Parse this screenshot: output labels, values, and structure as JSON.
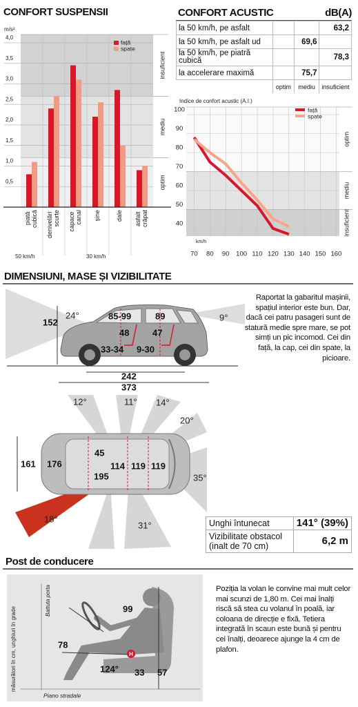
{
  "chart_data": [
    {
      "type": "bar",
      "title": "CONFORT SUSPENSII",
      "y_label": "m/s²",
      "categories": [
        "piată cubică",
        "denivelări scurte",
        "capace canal",
        "șine",
        "dale",
        "asfalt crăpat"
      ],
      "series": [
        {
          "name": "față",
          "color": "#d7182a",
          "values": [
            0.8,
            2.4,
            3.45,
            2.2,
            2.85,
            0.9
          ]
        },
        {
          "name": "spate",
          "color": "#f59a82",
          "values": [
            1.1,
            2.7,
            3.1,
            2.55,
            1.5,
            1.0
          ]
        }
      ],
      "ylim": [
        0,
        4.2
      ],
      "yticks": [
        {
          "value": 0.5,
          "label": "0,5"
        },
        {
          "value": 1,
          "label": "1,0"
        },
        {
          "value": 1.5,
          "label": "1,5"
        },
        {
          "value": 2,
          "label": "2,0"
        },
        {
          "value": 2.5,
          "label": "2,5"
        },
        {
          "value": 3,
          "label": "3,0"
        },
        {
          "value": 3.5,
          "label": "3,5"
        },
        {
          "value": 4,
          "label": "4,0"
        }
      ],
      "zones": [
        {
          "label": "optim",
          "from": 0,
          "to": 1.2,
          "color": "#efefef"
        },
        {
          "label": "mediu",
          "from": 1.2,
          "to": 2.7,
          "color": "#e3e3e3"
        },
        {
          "label": "insuficient",
          "from": 2.7,
          "to": 4.2,
          "color": "#d2d2d2"
        }
      ],
      "groups": [
        "50 km/h",
        "30 km/h"
      ]
    },
    {
      "type": "line",
      "title": "Indice de confort acustic (A.I.)",
      "x_label": "km/h",
      "x": [
        70,
        80,
        90,
        100,
        110,
        120,
        130
      ],
      "series": [
        {
          "name": "față",
          "color": "#d7182a",
          "values": [
            88,
            75,
            68,
            60,
            52,
            40,
            37
          ]
        },
        {
          "name": "spate",
          "color": "#f5a588",
          "values": [
            87,
            80,
            74,
            64,
            55,
            45,
            41
          ]
        }
      ],
      "xlim": [
        65,
        162
      ],
      "xticks": [
        70,
        80,
        90,
        100,
        110,
        120,
        130,
        140,
        150,
        160
      ],
      "ylim": [
        36,
        104
      ],
      "yticks": [
        40,
        50,
        60,
        70,
        80,
        90,
        100
      ],
      "zones": [
        {
          "label": "optim",
          "from": 70,
          "to": 104,
          "color": "#fafafa"
        },
        {
          "label": "mediu",
          "from": 50,
          "to": 70,
          "color": "#e4e4e4"
        },
        {
          "label": "insuficient",
          "from": 36,
          "to": 50,
          "color": "#d0d0d0"
        }
      ]
    }
  ],
  "acoustic_table": {
    "title": "CONFORT ACUSTIC",
    "unit": "dB(A)",
    "rows": [
      {
        "label": "la 50 km/h, pe asfalt",
        "value": "63,2"
      },
      {
        "label": "la 50 km/h, pe asfalt ud",
        "value": "69,6"
      },
      {
        "label": "la 50 km/h, pe piatră cubică",
        "value": "78,3"
      },
      {
        "label": "la accelerare maximă",
        "value": "75,7"
      }
    ],
    "columns": [
      "optim",
      "mediu",
      "insuficient"
    ]
  },
  "dimensions": {
    "title": "DIMENSIUNI, MASE ȘI VIZIBILITATE",
    "side_view": [
      "152",
      "24°",
      "85-99",
      "89",
      "9°",
      "48",
      "47",
      "33-34",
      "9-30",
      "242",
      "373"
    ],
    "text": "Raportat la gabaritul mașinii, spațiul interior este bun. Dar, dacă cei patru pasageri sunt de statură medie spre mare, se pot simți un pic incomod. Cei din față, la cap, cei din spate, la picioare.",
    "top_view": [
      "12°",
      "11°",
      "14°",
      "20°",
      "161",
      "176",
      "45",
      "114",
      "119",
      "119",
      "195",
      "35°",
      "18°",
      "31°"
    ],
    "visibility": [
      {
        "label": "Unghi întunecat",
        "value": "141° (39%)"
      },
      {
        "label": "Vizibilitate obstacol (inalt de 70 cm)",
        "value": "6,2 m"
      }
    ]
  },
  "driving": {
    "title": "Post de conducere",
    "axis_note": "măsurători în cm, unghiuri în grade",
    "labels": [
      "Battuta porta",
      "99",
      "78",
      "124°",
      "33",
      "57",
      "H",
      "Piano stradale"
    ],
    "text": "Poziția la volan le convine mai mult celor mai scunzi de 1,80 m. Cei mai înalți riscă să stea cu volanul în poală, iar coloana de direcție e fixă. Tetiera integrată în scaun este bună și pentru cei înalți, deoarece ajunge la 4 cm de plafon."
  }
}
